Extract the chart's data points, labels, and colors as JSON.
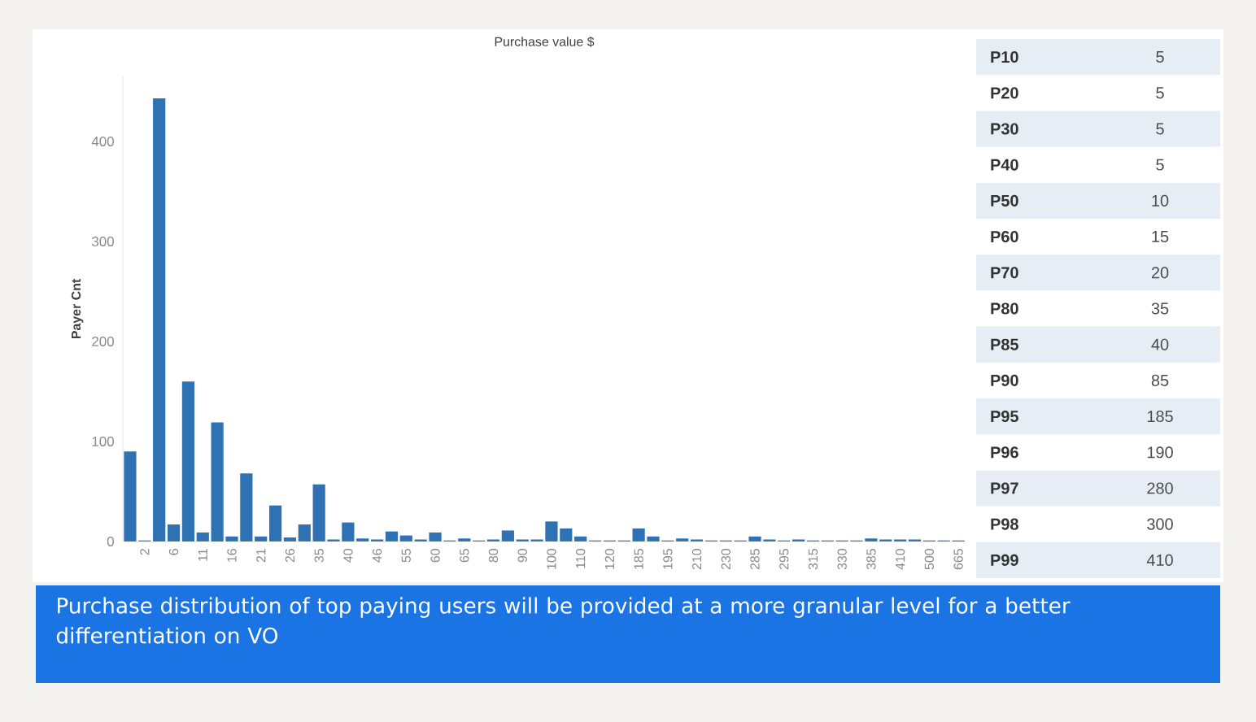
{
  "chart_data": [
    {
      "type": "bar",
      "title": "Purchase value $",
      "ylabel": "Payer Cnt",
      "color": "#2f72b3",
      "categories": [
        null,
        "2",
        null,
        "6",
        null,
        "11",
        null,
        "16",
        null,
        "21",
        null,
        "26",
        null,
        "35",
        null,
        "40",
        null,
        "46",
        null,
        "55",
        null,
        "60",
        null,
        "65",
        null,
        "80",
        null,
        "90",
        null,
        "100",
        null,
        "110",
        null,
        "120",
        null,
        "185",
        null,
        "195",
        null,
        "210",
        null,
        "230",
        null,
        "285",
        null,
        "295",
        null,
        "315",
        null,
        "330",
        null,
        "385",
        null,
        "410",
        null,
        "500",
        null,
        "665"
      ],
      "values": [
        90,
        1,
        443,
        17,
        160,
        9,
        119,
        5,
        68,
        5,
        36,
        4,
        17,
        57,
        2,
        19,
        3,
        2,
        10,
        6,
        2,
        9,
        1,
        3,
        1,
        2,
        11,
        2,
        2,
        20,
        13,
        5,
        1,
        1,
        1,
        13,
        5,
        1,
        3,
        2,
        1,
        1,
        1,
        5,
        2,
        1,
        2,
        1,
        1,
        1,
        1,
        3,
        2,
        2,
        2,
        1,
        1,
        1
      ],
      "ylim": [
        0,
        465
      ],
      "yticks": [
        0,
        100,
        200,
        300,
        400
      ],
      "annotations": [
        "Purchase distribution of top paying users will be provided at a more granular level for a better differentiation on VO"
      ]
    },
    {
      "type": "other",
      "data_labels": true,
      "categories": [
        "P10",
        "P20",
        "P30",
        "P40",
        "P50",
        "P60",
        "P70",
        "P80",
        "P85",
        "P90",
        "P95",
        "P96",
        "P97",
        "P98",
        "P99"
      ],
      "values": [
        5,
        5,
        5,
        5,
        10,
        15,
        20,
        35,
        40,
        85,
        185,
        190,
        280,
        300,
        410
      ]
    }
  ]
}
